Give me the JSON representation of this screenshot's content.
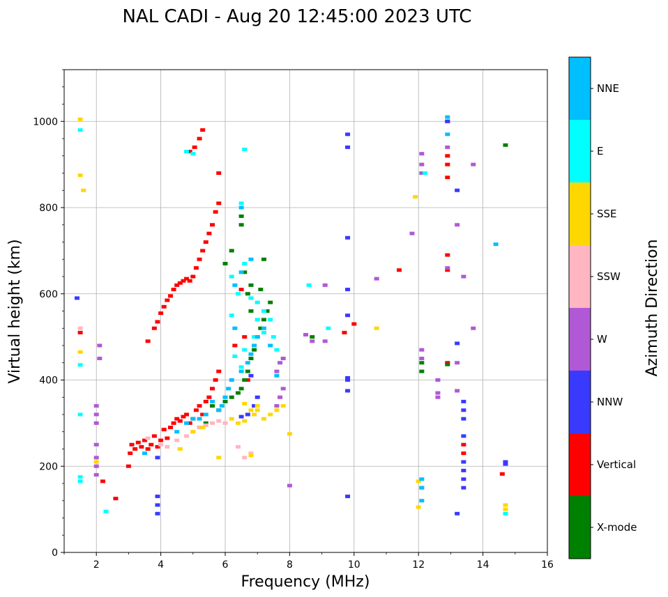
{
  "chart_data": {
    "type": "scatter",
    "title": "NAL CADI - Aug 20 12:45:00 2023 UTC",
    "xlabel": "Frequency (MHz)",
    "ylabel": "Virtual height (km)",
    "xlim": [
      1,
      16
    ],
    "ylim": [
      0,
      1120
    ],
    "xticks": [
      2,
      4,
      6,
      8,
      10,
      12,
      14,
      16
    ],
    "yticks": [
      0,
      200,
      400,
      600,
      800,
      1000
    ],
    "grid": true,
    "colorbar": {
      "title": "Azimuth Direction",
      "categories": [
        {
          "name": "X-mode",
          "color": "#008000"
        },
        {
          "name": "Vertical",
          "color": "#ff0000"
        },
        {
          "name": "NNW",
          "color": "#3a3aff"
        },
        {
          "name": "W",
          "color": "#b158d6"
        },
        {
          "name": "SSW",
          "color": "#ffb6c1"
        },
        {
          "name": "SSE",
          "color": "#ffd700"
        },
        {
          "name": "E",
          "color": "#00ffff"
        },
        {
          "name": "NNE",
          "color": "#00bfff"
        }
      ]
    },
    "series": [
      {
        "name": "Vertical",
        "points": [
          [
            1.5,
            510
          ],
          [
            2.2,
            165
          ],
          [
            2.6,
            125
          ],
          [
            3.0,
            200
          ],
          [
            3.05,
            230
          ],
          [
            3.1,
            250
          ],
          [
            3.2,
            240
          ],
          [
            3.3,
            255
          ],
          [
            3.4,
            245
          ],
          [
            3.5,
            260
          ],
          [
            3.6,
            240
          ],
          [
            3.7,
            250
          ],
          [
            3.8,
            270
          ],
          [
            3.9,
            245
          ],
          [
            4.0,
            260
          ],
          [
            4.1,
            285
          ],
          [
            4.2,
            265
          ],
          [
            4.3,
            290
          ],
          [
            4.4,
            300
          ],
          [
            4.5,
            310
          ],
          [
            4.6,
            305
          ],
          [
            4.7,
            315
          ],
          [
            4.8,
            320
          ],
          [
            4.9,
            300
          ],
          [
            5.0,
            310
          ],
          [
            5.1,
            330
          ],
          [
            5.2,
            340
          ],
          [
            5.3,
            320
          ],
          [
            5.4,
            350
          ],
          [
            5.5,
            360
          ],
          [
            5.6,
            380
          ],
          [
            5.7,
            400
          ],
          [
            5.8,
            420
          ],
          [
            3.6,
            490
          ],
          [
            3.8,
            520
          ],
          [
            3.9,
            535
          ],
          [
            4.0,
            555
          ],
          [
            4.1,
            570
          ],
          [
            4.2,
            585
          ],
          [
            4.3,
            595
          ],
          [
            4.4,
            610
          ],
          [
            4.5,
            620
          ],
          [
            4.6,
            625
          ],
          [
            4.7,
            630
          ],
          [
            4.8,
            635
          ],
          [
            4.9,
            630
          ],
          [
            5.0,
            640
          ],
          [
            5.1,
            660
          ],
          [
            5.2,
            680
          ],
          [
            5.3,
            700
          ],
          [
            5.4,
            720
          ],
          [
            5.5,
            740
          ],
          [
            5.6,
            760
          ],
          [
            5.7,
            790
          ],
          [
            5.8,
            810
          ],
          [
            5.3,
            980
          ],
          [
            5.2,
            960
          ],
          [
            5.05,
            940
          ],
          [
            4.9,
            930
          ],
          [
            5.8,
            880
          ],
          [
            6.5,
            610
          ],
          [
            6.3,
            480
          ],
          [
            6.6,
            500
          ],
          [
            6.7,
            400
          ],
          [
            12.9,
            870
          ],
          [
            12.9,
            900
          ],
          [
            12.9,
            920
          ],
          [
            12.9,
            1000
          ],
          [
            12.9,
            690
          ],
          [
            12.9,
            655
          ],
          [
            12.9,
            440
          ],
          [
            13.4,
            230
          ],
          [
            13.4,
            250
          ],
          [
            14.6,
            182
          ],
          [
            10.0,
            530
          ],
          [
            9.7,
            510
          ],
          [
            11.4,
            655
          ]
        ]
      },
      {
        "name": "X-mode",
        "points": [
          [
            5.6,
            340
          ],
          [
            5.8,
            330
          ],
          [
            6.0,
            350
          ],
          [
            6.2,
            360
          ],
          [
            6.4,
            370
          ],
          [
            6.5,
            380
          ],
          [
            6.6,
            400
          ],
          [
            6.7,
            420
          ],
          [
            6.8,
            450
          ],
          [
            6.9,
            470
          ],
          [
            7.0,
            500
          ],
          [
            7.1,
            520
          ],
          [
            7.2,
            540
          ],
          [
            7.3,
            560
          ],
          [
            7.4,
            580
          ],
          [
            6.5,
            780
          ],
          [
            6.5,
            760
          ],
          [
            6.6,
            650
          ],
          [
            6.7,
            600
          ],
          [
            6.8,
            620
          ],
          [
            6.2,
            700
          ],
          [
            6.0,
            670
          ],
          [
            6.8,
            560
          ],
          [
            7.1,
            610
          ],
          [
            7.2,
            680
          ],
          [
            5.4,
            300
          ],
          [
            5.2,
            290
          ],
          [
            12.1,
            420
          ],
          [
            12.1,
            440
          ],
          [
            12.9,
            436
          ],
          [
            14.7,
            945
          ],
          [
            8.7,
            500
          ]
        ]
      },
      {
        "name": "NNW",
        "points": [
          [
            3.9,
            90
          ],
          [
            3.9,
            110
          ],
          [
            3.9,
            130
          ],
          [
            3.9,
            220
          ],
          [
            6.5,
            315
          ],
          [
            6.7,
            320
          ],
          [
            6.9,
            340
          ],
          [
            7.0,
            360
          ],
          [
            6.8,
            410
          ],
          [
            9.8,
            970
          ],
          [
            9.8,
            940
          ],
          [
            9.8,
            730
          ],
          [
            9.8,
            610
          ],
          [
            9.8,
            550
          ],
          [
            9.8,
            405
          ],
          [
            9.8,
            400
          ],
          [
            9.8,
            375
          ],
          [
            9.8,
            130
          ],
          [
            13.2,
            840
          ],
          [
            13.2,
            485
          ],
          [
            13.4,
            350
          ],
          [
            13.4,
            330
          ],
          [
            13.4,
            310
          ],
          [
            13.4,
            270
          ],
          [
            13.4,
            210
          ],
          [
            13.4,
            190
          ],
          [
            13.4,
            170
          ],
          [
            13.4,
            150
          ],
          [
            13.2,
            90
          ],
          [
            14.7,
            210
          ],
          [
            14.7,
            205
          ],
          [
            1.4,
            590
          ],
          [
            12.9,
            1000
          ]
        ]
      },
      {
        "name": "W",
        "points": [
          [
            2.0,
            180
          ],
          [
            2.0,
            200
          ],
          [
            2.0,
            220
          ],
          [
            2.0,
            250
          ],
          [
            2.0,
            300
          ],
          [
            2.0,
            320
          ],
          [
            2.0,
            340
          ],
          [
            2.1,
            450
          ],
          [
            2.1,
            480
          ],
          [
            7.6,
            340
          ],
          [
            7.7,
            360
          ],
          [
            7.8,
            380
          ],
          [
            7.6,
            420
          ],
          [
            7.7,
            440
          ],
          [
            7.8,
            450
          ],
          [
            8.5,
            505
          ],
          [
            8.7,
            490
          ],
          [
            9.1,
            490
          ],
          [
            9.1,
            620
          ],
          [
            10.7,
            635
          ],
          [
            11.8,
            740
          ],
          [
            12.1,
            925
          ],
          [
            12.1,
            900
          ],
          [
            12.1,
            880
          ],
          [
            12.1,
            470
          ],
          [
            12.1,
            450
          ],
          [
            12.1,
            150
          ],
          [
            12.6,
            370
          ],
          [
            12.6,
            360
          ],
          [
            12.6,
            400
          ],
          [
            13.2,
            760
          ],
          [
            13.2,
            440
          ],
          [
            13.2,
            375
          ],
          [
            13.4,
            640
          ],
          [
            13.7,
            900
          ],
          [
            13.7,
            520
          ],
          [
            12.9,
            940
          ],
          [
            12.9,
            660
          ],
          [
            8.0,
            155
          ]
        ]
      },
      {
        "name": "SSW",
        "points": [
          [
            1.5,
            520
          ],
          [
            4.0,
            250
          ],
          [
            4.2,
            245
          ],
          [
            4.5,
            260
          ],
          [
            4.8,
            270
          ],
          [
            5.0,
            280
          ],
          [
            5.2,
            290
          ],
          [
            5.4,
            295
          ],
          [
            5.6,
            300
          ],
          [
            5.8,
            305
          ],
          [
            6.0,
            300
          ],
          [
            6.6,
            220
          ],
          [
            6.8,
            230
          ],
          [
            6.4,
            245
          ],
          [
            3.6,
            265
          ]
        ]
      },
      {
        "name": "SSE",
        "points": [
          [
            1.5,
            1005
          ],
          [
            1.5,
            875
          ],
          [
            1.5,
            465
          ],
          [
            1.6,
            840
          ],
          [
            2.0,
            210
          ],
          [
            6.2,
            310
          ],
          [
            6.4,
            300
          ],
          [
            6.6,
            305
          ],
          [
            6.9,
            320
          ],
          [
            7.0,
            330
          ],
          [
            7.2,
            310
          ],
          [
            7.4,
            320
          ],
          [
            7.6,
            330
          ],
          [
            7.8,
            340
          ],
          [
            6.8,
            330
          ],
          [
            5.3,
            290
          ],
          [
            5.0,
            280
          ],
          [
            5.8,
            220
          ],
          [
            6.8,
            225
          ],
          [
            12.0,
            165
          ],
          [
            12.0,
            105
          ],
          [
            14.7,
            110
          ],
          [
            14.7,
            100
          ],
          [
            10.7,
            520
          ],
          [
            11.9,
            825
          ],
          [
            8.0,
            275
          ],
          [
            4.6,
            240
          ],
          [
            6.6,
            345
          ],
          [
            7.0,
            340
          ]
        ]
      },
      {
        "name": "E",
        "points": [
          [
            1.5,
            980
          ],
          [
            1.5,
            435
          ],
          [
            1.5,
            320
          ],
          [
            1.5,
            175
          ],
          [
            1.5,
            165
          ],
          [
            2.3,
            95
          ],
          [
            6.6,
            935
          ],
          [
            6.5,
            810
          ],
          [
            6.6,
            670
          ],
          [
            6.2,
            640
          ],
          [
            6.4,
            600
          ],
          [
            6.8,
            590
          ],
          [
            7.0,
            580
          ],
          [
            7.2,
            560
          ],
          [
            7.4,
            540
          ],
          [
            7.0,
            540
          ],
          [
            7.2,
            510
          ],
          [
            7.5,
            500
          ],
          [
            7.6,
            470
          ],
          [
            6.3,
            455
          ],
          [
            6.6,
            470
          ],
          [
            6.2,
            550
          ],
          [
            6.5,
            430
          ],
          [
            6.9,
            500
          ],
          [
            8.6,
            620
          ],
          [
            9.2,
            520
          ],
          [
            12.2,
            880
          ],
          [
            14.7,
            90
          ],
          [
            4.8,
            930
          ],
          [
            5.0,
            925
          ]
        ]
      },
      {
        "name": "NNE",
        "points": [
          [
            6.5,
            800
          ],
          [
            6.5,
            650
          ],
          [
            6.8,
            680
          ],
          [
            6.3,
            620
          ],
          [
            5.8,
            330
          ],
          [
            5.9,
            340
          ],
          [
            6.0,
            360
          ],
          [
            6.1,
            380
          ],
          [
            6.2,
            400
          ],
          [
            6.5,
            420
          ],
          [
            6.7,
            440
          ],
          [
            6.8,
            460
          ],
          [
            6.9,
            480
          ],
          [
            7.0,
            500
          ],
          [
            7.2,
            520
          ],
          [
            7.4,
            480
          ],
          [
            7.6,
            410
          ],
          [
            6.3,
            520
          ],
          [
            5.6,
            350
          ],
          [
            5.4,
            320
          ],
          [
            5.2,
            310
          ],
          [
            5.0,
            310
          ],
          [
            4.8,
            300
          ],
          [
            4.5,
            280
          ],
          [
            12.1,
            170
          ],
          [
            12.1,
            150
          ],
          [
            12.1,
            120
          ],
          [
            12.9,
            1010
          ],
          [
            12.9,
            970
          ],
          [
            14.4,
            715
          ],
          [
            3.5,
            230
          ]
        ]
      }
    ]
  }
}
